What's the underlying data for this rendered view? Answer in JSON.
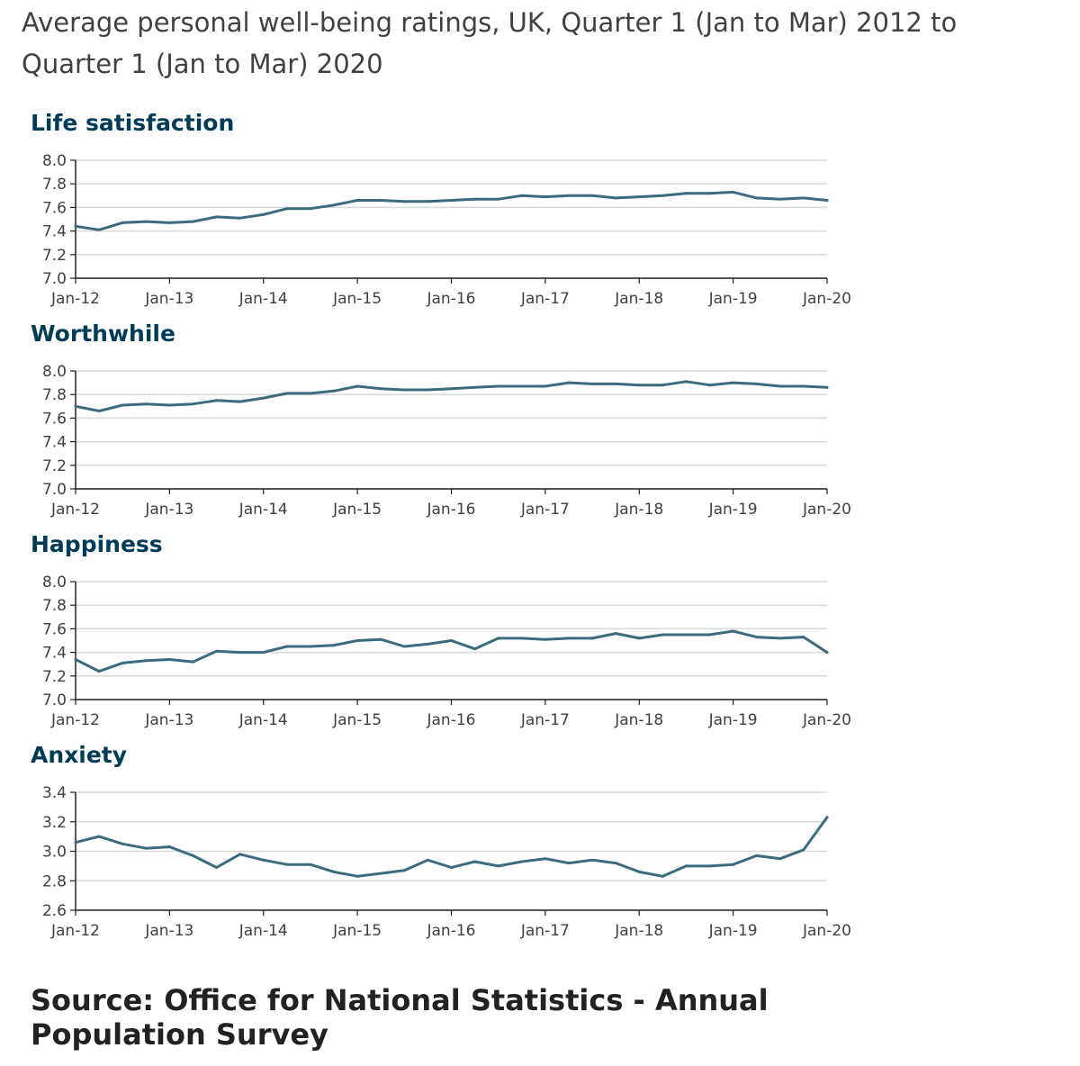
{
  "title": "Average personal well-being ratings, UK, Quarter 1 (Jan to Mar) 2012 to Quarter 1 (Jan to Mar) 2020",
  "source": "Source: Office for National Statistics - Annual Population Survey",
  "colors": {
    "line": "#3d6b7e",
    "panel_title": "#003c57",
    "grid": "#d9d9d9",
    "axis": "#222222",
    "text": "#414042"
  },
  "chart_data": [
    {
      "type": "line",
      "title": "Life satisfaction",
      "x_tick_labels": [
        "Jan-12",
        "Jan-13",
        "Jan-14",
        "Jan-15",
        "Jan-16",
        "Jan-17",
        "Jan-18",
        "Jan-19",
        "Jan-20"
      ],
      "ylim": [
        7.0,
        8.0
      ],
      "y_ticks": [
        "7.0",
        "7.2",
        "7.4",
        "7.6",
        "7.8",
        "8.0"
      ],
      "grid": true,
      "x_quarters": [
        "Q1 2012",
        "Q2 2012",
        "Q3 2012",
        "Q4 2012",
        "Q1 2013",
        "Q2 2013",
        "Q3 2013",
        "Q4 2013",
        "Q1 2014",
        "Q2 2014",
        "Q3 2014",
        "Q4 2014",
        "Q1 2015",
        "Q2 2015",
        "Q3 2015",
        "Q4 2015",
        "Q1 2016",
        "Q2 2016",
        "Q3 2016",
        "Q4 2016",
        "Q1 2017",
        "Q2 2017",
        "Q3 2017",
        "Q4 2017",
        "Q1 2018",
        "Q2 2018",
        "Q3 2018",
        "Q4 2018",
        "Q1 2019",
        "Q2 2019",
        "Q3 2019",
        "Q4 2019",
        "Q1 2020"
      ],
      "values": [
        7.44,
        7.41,
        7.47,
        7.48,
        7.47,
        7.48,
        7.52,
        7.51,
        7.54,
        7.59,
        7.59,
        7.62,
        7.66,
        7.66,
        7.65,
        7.65,
        7.66,
        7.67,
        7.67,
        7.7,
        7.69,
        7.7,
        7.7,
        7.68,
        7.69,
        7.7,
        7.72,
        7.72,
        7.73,
        7.68,
        7.67,
        7.68,
        7.66
      ]
    },
    {
      "type": "line",
      "title": "Worthwhile",
      "x_tick_labels": [
        "Jan-12",
        "Jan-13",
        "Jan-14",
        "Jan-15",
        "Jan-16",
        "Jan-17",
        "Jan-18",
        "Jan-19",
        "Jan-20"
      ],
      "ylim": [
        7.0,
        8.0
      ],
      "y_ticks": [
        "7.0",
        "7.2",
        "7.4",
        "7.6",
        "7.8",
        "8.0"
      ],
      "grid": true,
      "x_quarters": [
        "Q1 2012",
        "Q2 2012",
        "Q3 2012",
        "Q4 2012",
        "Q1 2013",
        "Q2 2013",
        "Q3 2013",
        "Q4 2013",
        "Q1 2014",
        "Q2 2014",
        "Q3 2014",
        "Q4 2014",
        "Q1 2015",
        "Q2 2015",
        "Q3 2015",
        "Q4 2015",
        "Q1 2016",
        "Q2 2016",
        "Q3 2016",
        "Q4 2016",
        "Q1 2017",
        "Q2 2017",
        "Q3 2017",
        "Q4 2017",
        "Q1 2018",
        "Q2 2018",
        "Q3 2018",
        "Q4 2018",
        "Q1 2019",
        "Q2 2019",
        "Q3 2019",
        "Q4 2019",
        "Q1 2020"
      ],
      "values": [
        7.7,
        7.66,
        7.71,
        7.72,
        7.71,
        7.72,
        7.75,
        7.74,
        7.77,
        7.81,
        7.81,
        7.83,
        7.87,
        7.85,
        7.84,
        7.84,
        7.85,
        7.86,
        7.87,
        7.87,
        7.87,
        7.9,
        7.89,
        7.89,
        7.88,
        7.88,
        7.91,
        7.88,
        7.9,
        7.89,
        7.87,
        7.87,
        7.86
      ]
    },
    {
      "type": "line",
      "title": "Happiness",
      "x_tick_labels": [
        "Jan-12",
        "Jan-13",
        "Jan-14",
        "Jan-15",
        "Jan-16",
        "Jan-17",
        "Jan-18",
        "Jan-19",
        "Jan-20"
      ],
      "ylim": [
        7.0,
        8.0
      ],
      "y_ticks": [
        "7.0",
        "7.2",
        "7.4",
        "7.6",
        "7.8",
        "8.0"
      ],
      "grid": true,
      "x_quarters": [
        "Q1 2012",
        "Q2 2012",
        "Q3 2012",
        "Q4 2012",
        "Q1 2013",
        "Q2 2013",
        "Q3 2013",
        "Q4 2013",
        "Q1 2014",
        "Q2 2014",
        "Q3 2014",
        "Q4 2014",
        "Q1 2015",
        "Q2 2015",
        "Q3 2015",
        "Q4 2015",
        "Q1 2016",
        "Q2 2016",
        "Q3 2016",
        "Q4 2016",
        "Q1 2017",
        "Q2 2017",
        "Q3 2017",
        "Q4 2017",
        "Q1 2018",
        "Q2 2018",
        "Q3 2018",
        "Q4 2018",
        "Q1 2019",
        "Q2 2019",
        "Q3 2019",
        "Q4 2019",
        "Q1 2020"
      ],
      "values": [
        7.34,
        7.24,
        7.31,
        7.33,
        7.34,
        7.32,
        7.41,
        7.4,
        7.4,
        7.45,
        7.45,
        7.46,
        7.5,
        7.51,
        7.45,
        7.47,
        7.5,
        7.43,
        7.52,
        7.52,
        7.51,
        7.52,
        7.52,
        7.56,
        7.52,
        7.55,
        7.55,
        7.55,
        7.58,
        7.53,
        7.52,
        7.53,
        7.4
      ]
    },
    {
      "type": "line",
      "title": "Anxiety",
      "x_tick_labels": [
        "Jan-12",
        "Jan-13",
        "Jan-14",
        "Jan-15",
        "Jan-16",
        "Jan-17",
        "Jan-18",
        "Jan-19",
        "Jan-20"
      ],
      "ylim": [
        2.6,
        3.4
      ],
      "y_ticks": [
        "2.6",
        "2.8",
        "3.0",
        "3.2",
        "3.4"
      ],
      "grid": true,
      "x_quarters": [
        "Q1 2012",
        "Q2 2012",
        "Q3 2012",
        "Q4 2012",
        "Q1 2013",
        "Q2 2013",
        "Q3 2013",
        "Q4 2013",
        "Q1 2014",
        "Q2 2014",
        "Q3 2014",
        "Q4 2014",
        "Q1 2015",
        "Q2 2015",
        "Q3 2015",
        "Q4 2015",
        "Q1 2016",
        "Q2 2016",
        "Q3 2016",
        "Q4 2016",
        "Q1 2017",
        "Q2 2017",
        "Q3 2017",
        "Q4 2017",
        "Q1 2018",
        "Q2 2018",
        "Q3 2018",
        "Q4 2018",
        "Q1 2019",
        "Q2 2019",
        "Q3 2019",
        "Q4 2019",
        "Q1 2020"
      ],
      "values": [
        3.06,
        3.1,
        3.05,
        3.02,
        3.03,
        2.97,
        2.89,
        2.98,
        2.94,
        2.91,
        2.91,
        2.86,
        2.83,
        2.85,
        2.87,
        2.94,
        2.89,
        2.93,
        2.9,
        2.93,
        2.95,
        2.92,
        2.94,
        2.92,
        2.86,
        2.83,
        2.9,
        2.9,
        2.91,
        2.97,
        2.95,
        3.01,
        3.23
      ]
    }
  ]
}
